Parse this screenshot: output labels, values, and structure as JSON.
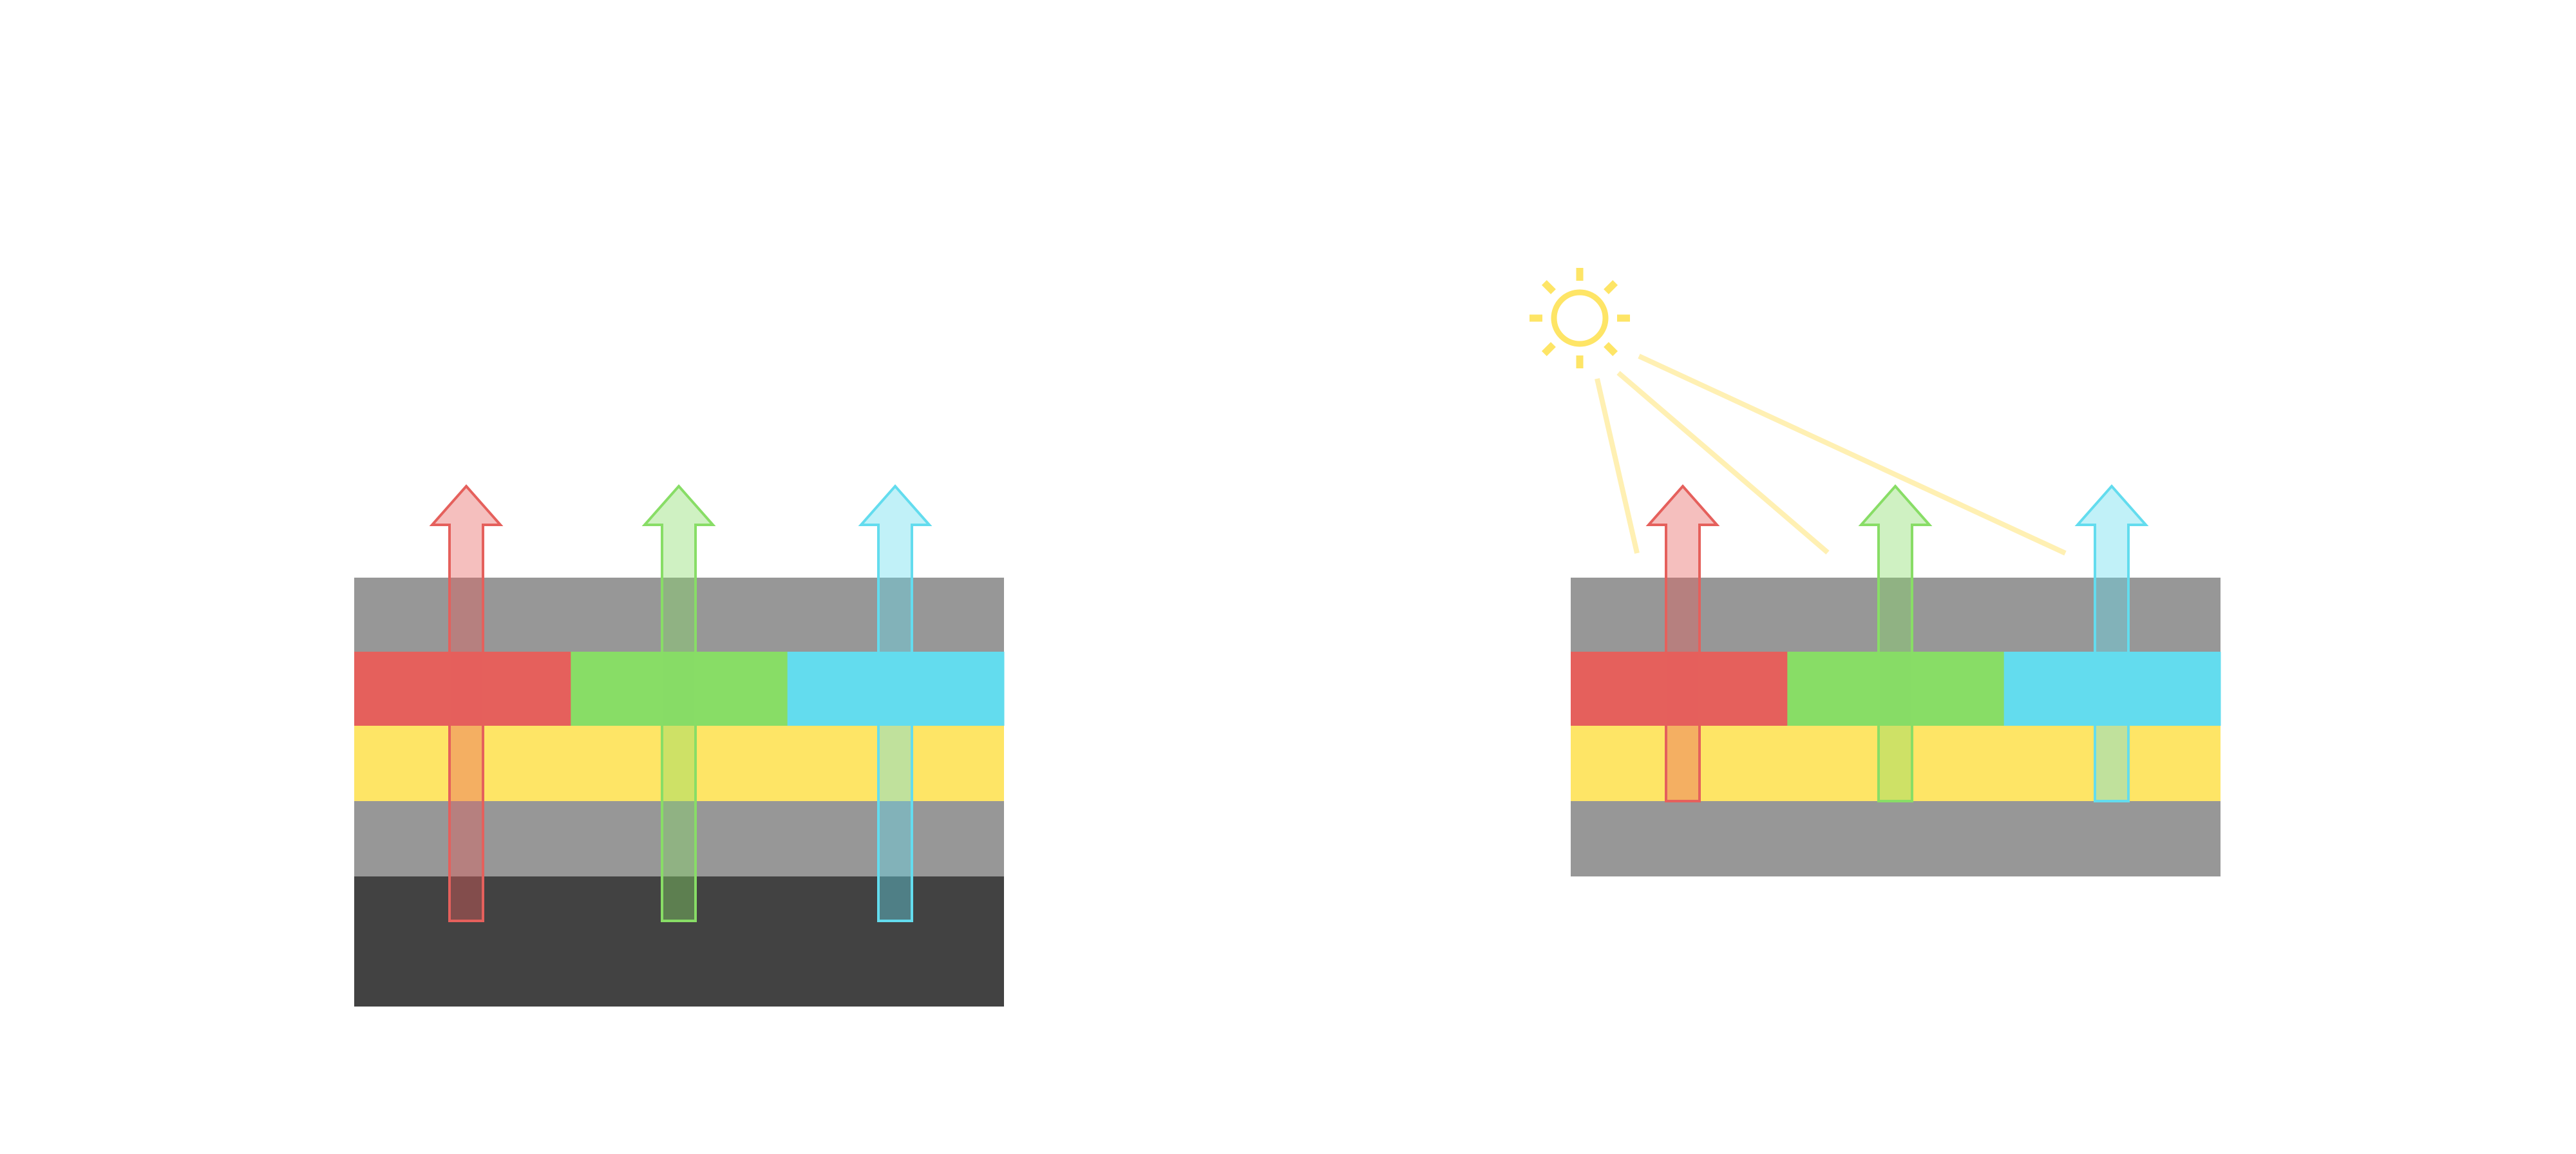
{
  "colors": {
    "gray_layer": "#979797",
    "dark_layer": "#424242",
    "red": "#e5605c",
    "green": "#88dd66",
    "cyan": "#63dcee",
    "yellow": "#fee566",
    "light_beam": "#fff0b3",
    "sun": "#fee566"
  },
  "left_stack": {
    "layers": [
      "gray",
      "red-green-cyan",
      "yellow",
      "gray",
      "dark"
    ],
    "arrows": [
      "red",
      "green",
      "cyan"
    ]
  },
  "right_stack": {
    "layers": [
      "gray",
      "red-green-cyan",
      "yellow",
      "gray"
    ],
    "arrows": [
      "red",
      "green",
      "cyan"
    ],
    "light_source": "sun-icon",
    "light_beams": 3
  }
}
